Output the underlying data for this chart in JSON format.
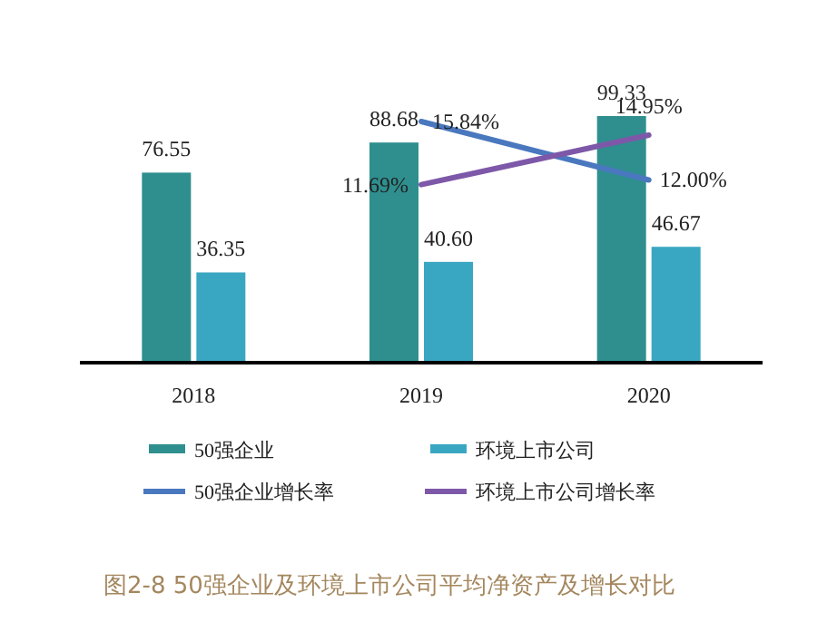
{
  "chart_data": {
    "type": "bar",
    "title": "图2-8 50强企业及环境上市公司平均净资产及增长对比",
    "categories": [
      "2018",
      "2019",
      "2020"
    ],
    "series": [
      {
        "name": "50强企业",
        "color": "#2f8f8f",
        "values": [
          76.55,
          88.68,
          99.33
        ],
        "value_labels": [
          "76.55",
          "88.68",
          "99.33"
        ]
      },
      {
        "name": "环境上市公司",
        "color": "#3aa7c2",
        "values": [
          36.35,
          40.6,
          46.67
        ],
        "value_labels": [
          "36.35",
          "40.60",
          "46.67"
        ]
      },
      {
        "name": "50强企业增长率",
        "type": "line",
        "axis": "y2",
        "color": "#4a78bf",
        "values": [
          null,
          15.84,
          12.0
        ],
        "value_labels": [
          null,
          "15.84%",
          "12.00%"
        ]
      },
      {
        "name": "环境上市公司增长率",
        "type": "line",
        "axis": "y2",
        "color": "#7e58a8",
        "values": [
          null,
          11.69,
          14.95
        ],
        "value_labels": [
          null,
          "11.69%",
          "14.95%"
        ]
      }
    ],
    "legend": "bottom"
  }
}
